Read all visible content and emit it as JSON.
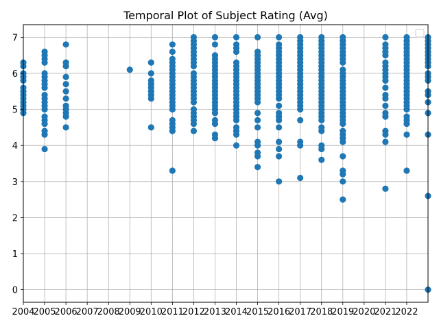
{
  "chart_data": {
    "type": "scatter",
    "title": "Temporal Plot of Subject Rating (Avg)",
    "xlabel": "",
    "ylabel": "",
    "x_ticks": [
      "2004",
      "2005",
      "2006",
      "2007",
      "2008",
      "2009",
      "2010",
      "2011",
      "2012",
      "2013",
      "2014",
      "2015",
      "2016",
      "2017",
      "2018",
      "2019",
      "2020",
      "2021",
      "2022"
    ],
    "y_ticks": [
      "0",
      "1",
      "2",
      "3",
      "4",
      "5",
      "6",
      "7"
    ],
    "xlim": [
      2004,
      2023
    ],
    "ylim": [
      -0.35,
      7.35
    ],
    "grid": true,
    "legend": "upper-right (empty)",
    "point_color": "#1f77b4",
    "series": [
      {
        "points": [
          {
            "year": 2004,
            "ratings": [
              4.9,
              5.0,
              5.1,
              5.2,
              5.3,
              5.4,
              5.5,
              5.6,
              5.8,
              5.9,
              6.0,
              6.2,
              6.3
            ]
          },
          {
            "year": 2005,
            "ratings": [
              3.9,
              4.3,
              4.4,
              4.6,
              4.7,
              4.8,
              5.0,
              5.1,
              5.2,
              5.3,
              5.4,
              5.6,
              5.7,
              5.8,
              5.9,
              6.0,
              6.3,
              6.4,
              6.5,
              6.6
            ]
          },
          {
            "year": 2006,
            "ratings": [
              4.5,
              4.8,
              4.9,
              5.0,
              5.1,
              5.3,
              5.5,
              5.7,
              5.9,
              6.2,
              6.3,
              6.8
            ]
          },
          {
            "year": 2009,
            "ratings": [
              6.1
            ]
          },
          {
            "year": 2010,
            "ratings": [
              4.5,
              5.3,
              5.4,
              5.5,
              5.6,
              5.7,
              5.8,
              6.0,
              6.3
            ]
          },
          {
            "year": 2011,
            "ratings": [
              3.3,
              4.4,
              4.5,
              4.6,
              4.7,
              5.0,
              5.1,
              5.2,
              5.3,
              5.4,
              5.5,
              5.6,
              5.7,
              5.8,
              5.9,
              6.0,
              6.1,
              6.2,
              6.3,
              6.4,
              6.6,
              6.8
            ]
          },
          {
            "year": 2012,
            "ratings": [
              4.4,
              4.6,
              4.7,
              4.8,
              4.9,
              5.0,
              5.2,
              5.3,
              5.4,
              5.5,
              5.6,
              5.7,
              5.8,
              5.9,
              6.0,
              6.2,
              6.3,
              6.4,
              6.5,
              6.6,
              6.7,
              6.8,
              6.9,
              7.0
            ]
          },
          {
            "year": 2013,
            "ratings": [
              4.2,
              4.3,
              4.6,
              4.7,
              4.9,
              5.0,
              5.1,
              5.2,
              5.3,
              5.4,
              5.5,
              5.6,
              5.7,
              5.8,
              5.9,
              6.0,
              6.1,
              6.2,
              6.3,
              6.4,
              6.5,
              6.8,
              7.0
            ]
          },
          {
            "year": 2014,
            "ratings": [
              4.0,
              4.3,
              4.4,
              4.5,
              4.7,
              4.8,
              4.9,
              5.0,
              5.1,
              5.2,
              5.3,
              5.4,
              5.5,
              5.6,
              5.7,
              5.8,
              5.9,
              6.0,
              6.1,
              6.2,
              6.3,
              6.6,
              6.7,
              6.8,
              7.0
            ]
          },
          {
            "year": 2015,
            "ratings": [
              3.4,
              3.7,
              3.8,
              4.0,
              4.1,
              4.5,
              4.7,
              4.9,
              5.2,
              5.3,
              5.4,
              5.5,
              5.6,
              5.7,
              5.8,
              5.9,
              6.0,
              6.1,
              6.2,
              6.3,
              6.4,
              6.5,
              6.6,
              7.0
            ]
          },
          {
            "year": 2016,
            "ratings": [
              3.0,
              3.7,
              3.9,
              4.1,
              4.5,
              4.7,
              4.8,
              4.9,
              5.1,
              5.3,
              5.4,
              5.5,
              5.6,
              5.7,
              5.8,
              5.9,
              6.0,
              6.1,
              6.2,
              6.3,
              6.4,
              6.5,
              6.6,
              6.7,
              6.8,
              7.0
            ]
          },
          {
            "year": 2017,
            "ratings": [
              3.1,
              4.0,
              4.1,
              4.7,
              5.0,
              5.1,
              5.2,
              5.3,
              5.4,
              5.5,
              5.6,
              5.7,
              5.8,
              5.9,
              6.0,
              6.1,
              6.2,
              6.3,
              6.4,
              6.5,
              6.6,
              6.7,
              6.8,
              6.9,
              7.0
            ]
          },
          {
            "year": 2018,
            "ratings": [
              3.6,
              3.9,
              4.0,
              4.4,
              4.5,
              4.7,
              4.8,
              4.9,
              5.0,
              5.1,
              5.2,
              5.3,
              5.4,
              5.5,
              5.6,
              5.7,
              5.8,
              5.9,
              6.0,
              6.1,
              6.2,
              6.3,
              6.4,
              6.5,
              6.6,
              6.7,
              6.8,
              6.9,
              7.0
            ]
          },
          {
            "year": 2019,
            "ratings": [
              2.5,
              3.0,
              3.2,
              3.3,
              3.7,
              4.1,
              4.2,
              4.3,
              4.4,
              4.6,
              4.7,
              4.8,
              4.9,
              5.0,
              5.1,
              5.2,
              5.3,
              5.4,
              5.5,
              5.6,
              5.7,
              5.8,
              5.9,
              6.0,
              6.1,
              6.3,
              6.4,
              6.5,
              6.6,
              6.7,
              6.8,
              6.9,
              7.0
            ]
          },
          {
            "year": 2021,
            "ratings": [
              2.8,
              4.1,
              4.3,
              4.4,
              4.8,
              4.9,
              5.1,
              5.3,
              5.4,
              5.6,
              5.8,
              5.9,
              6.0,
              6.1,
              6.2,
              6.3,
              6.5,
              6.6,
              6.7,
              6.8,
              7.0
            ]
          },
          {
            "year": 2022,
            "ratings": [
              3.3,
              4.3,
              4.6,
              4.7,
              4.8,
              5.0,
              5.1,
              5.2,
              5.3,
              5.4,
              5.5,
              5.6,
              5.7,
              5.8,
              5.9,
              6.0,
              6.1,
              6.2,
              6.3,
              6.4,
              6.5,
              6.6,
              6.7,
              6.8,
              6.9,
              7.0
            ]
          },
          {
            "year": 2023,
            "ratings": [
              0.0,
              2.6,
              4.3,
              4.9,
              5.2,
              5.4,
              5.5,
              5.8,
              5.9,
              6.0,
              6.2,
              6.3,
              6.4,
              6.5,
              6.6,
              6.7,
              6.8,
              6.9,
              7.0
            ]
          }
        ]
      }
    ]
  }
}
